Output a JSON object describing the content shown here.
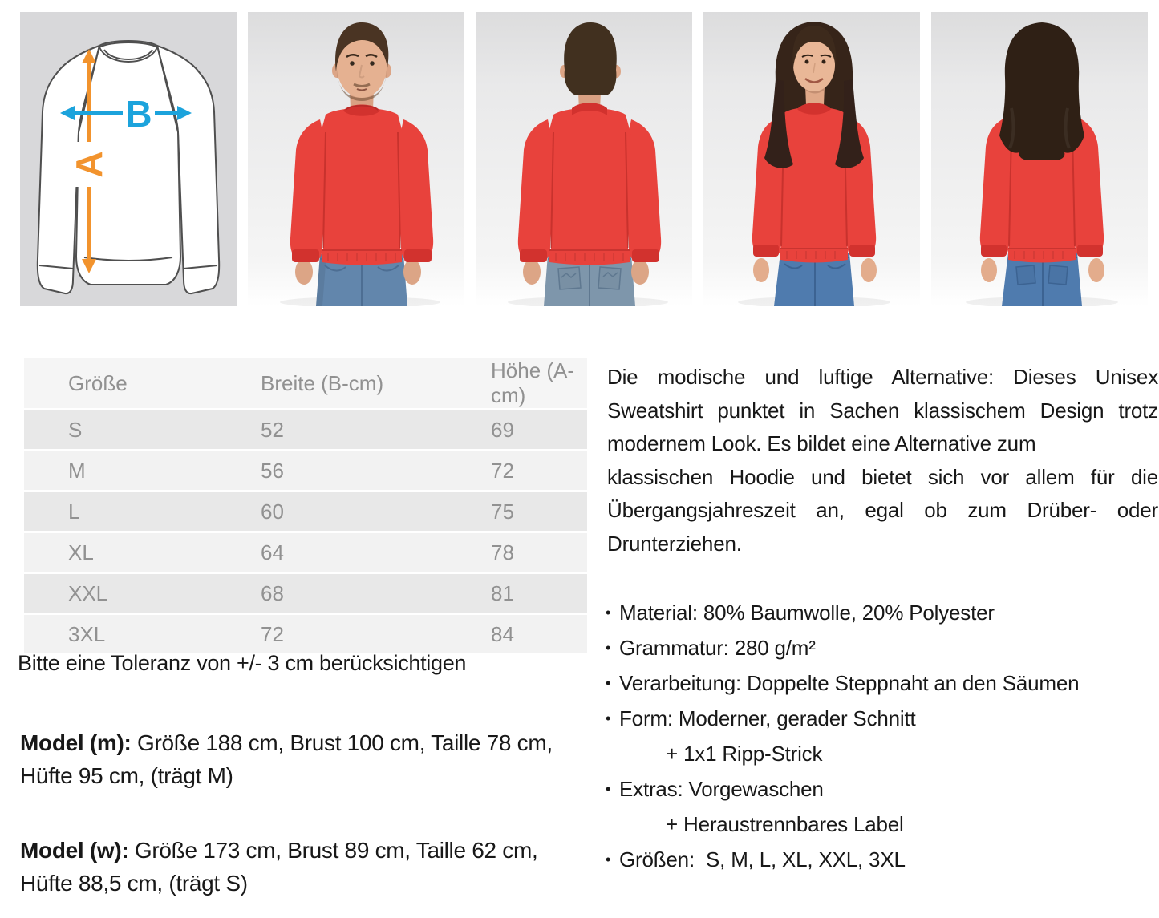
{
  "gallery": {
    "size_diagram": {
      "name": "sweatshirt-measurement-diagram",
      "label_height": "A",
      "label_width": "B",
      "color_height": "#F2932D",
      "color_width": "#1CA3DC"
    },
    "photos": [
      {
        "name": "male-model-front"
      },
      {
        "name": "male-model-back"
      },
      {
        "name": "female-model-front"
      },
      {
        "name": "female-model-back"
      }
    ],
    "sweatshirt_color": "#E8423C"
  },
  "size_table": {
    "headers": [
      "Größe",
      "Breite (B-cm)",
      "Höhe (A-cm)"
    ],
    "rows": [
      [
        "S",
        "52",
        "69"
      ],
      [
        "M",
        "56",
        "72"
      ],
      [
        "L",
        "60",
        "75"
      ],
      [
        "XL",
        "64",
        "78"
      ],
      [
        "XXL",
        "68",
        "81"
      ],
      [
        "3XL",
        "72",
        "84"
      ]
    ]
  },
  "tolerance_note": "Bitte eine Toleranz von +/- 3 cm berücksichtigen",
  "models": {
    "m": {
      "label": "Model (m):",
      "details": "Größe 188 cm, Brust 100 cm, Taille 78 cm, Hüfte 95 cm, (trägt M)"
    },
    "w": {
      "label": "Model (w):",
      "details": "Größe 173 cm, Brust 89 cm, Taille 62 cm, Hüfte 88,5 cm, (trägt S)"
    }
  },
  "description": {
    "lines": [
      {
        "text": "Die modische und luftige Alternative: Dieses Unisex",
        "justify": true
      },
      {
        "text": "Sweatshirt punktet in Sachen klassischem Design trotz",
        "justify": true
      },
      {
        "text": "modernem Look. Es bildet eine Alternative zum",
        "justify": false
      },
      {
        "text": "klassischen Hoodie und bietet sich vor allem für die",
        "justify": true
      },
      {
        "text": "Übergangsjahreszeit an, egal ob zum Drüber- oder",
        "justify": true
      },
      {
        "text": "Drunterziehen.",
        "justify": false
      }
    ]
  },
  "features": {
    "items": [
      {
        "text": "Material: 80% Baumwolle, 20% Polyester",
        "indent": false
      },
      {
        "text": "Grammatur: 280 g/m²",
        "indent": false
      },
      {
        "text": "Verarbeitung: Doppelte Steppnaht an den Säumen",
        "indent": false
      },
      {
        "text": "Form: Moderner, gerader Schnitt",
        "indent": false
      },
      {
        "text": "+ 1x1 Ripp-Strick",
        "indent": true
      },
      {
        "text": "Extras: Vorgewaschen",
        "indent": false
      },
      {
        "text": "+ Heraustrennbares Label",
        "indent": true
      },
      {
        "text": "Größen:  S, M, L, XL, XXL, 3XL",
        "indent": false
      }
    ]
  }
}
